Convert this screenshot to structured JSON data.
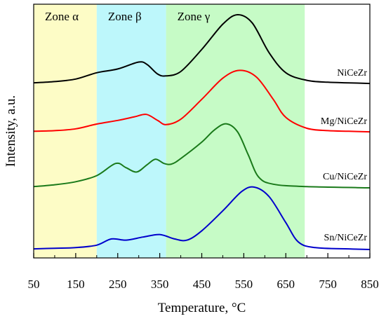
{
  "chart_data": {
    "type": "line",
    "xlabel": "Temperature, °C",
    "ylabel": "Intensity, a.u.",
    "xlim": [
      50,
      850
    ],
    "xticks": [
      50,
      150,
      250,
      350,
      450,
      550,
      650,
      750,
      850
    ],
    "grid": false,
    "y_ticks_labeled": false,
    "zones": [
      {
        "label": "Zone α",
        "from": 50,
        "to": 200,
        "color": "#fdfcc6"
      },
      {
        "label": "Zone β",
        "from": 200,
        "to": 365,
        "color": "#bdf7fb"
      },
      {
        "label": "Zone γ",
        "from": 365,
        "to": 695,
        "color": "#c6fbc6"
      }
    ],
    "series": [
      {
        "name": "NiCeZr",
        "color": "#000000",
        "points": [
          [
            50,
            0.02
          ],
          [
            100,
            0.04
          ],
          [
            150,
            0.08
          ],
          [
            200,
            0.18
          ],
          [
            250,
            0.24
          ],
          [
            300,
            0.35
          ],
          [
            320,
            0.31
          ],
          [
            345,
            0.16
          ],
          [
            365,
            0.13
          ],
          [
            400,
            0.2
          ],
          [
            450,
            0.55
          ],
          [
            500,
            0.95
          ],
          [
            535,
            1.1
          ],
          [
            570,
            0.97
          ],
          [
            610,
            0.5
          ],
          [
            650,
            0.18
          ],
          [
            700,
            0.06
          ],
          [
            750,
            0.03
          ],
          [
            800,
            0.02
          ],
          [
            850,
            0.01
          ]
        ]
      },
      {
        "name": "Mg/NiCeZr",
        "color": "#ff0000",
        "points": [
          [
            50,
            0.02
          ],
          [
            100,
            0.03
          ],
          [
            150,
            0.06
          ],
          [
            200,
            0.14
          ],
          [
            250,
            0.2
          ],
          [
            290,
            0.26
          ],
          [
            318,
            0.3
          ],
          [
            345,
            0.2
          ],
          [
            365,
            0.13
          ],
          [
            400,
            0.22
          ],
          [
            450,
            0.55
          ],
          [
            500,
            0.9
          ],
          [
            540,
            1.03
          ],
          [
            580,
            0.92
          ],
          [
            620,
            0.55
          ],
          [
            650,
            0.25
          ],
          [
            700,
            0.07
          ],
          [
            750,
            0.03
          ],
          [
            800,
            0.02
          ],
          [
            850,
            0.01
          ]
        ]
      },
      {
        "name": "Cu/NiCeZr",
        "color": "#1a7a1a",
        "points": [
          [
            50,
            0.02
          ],
          [
            100,
            0.05
          ],
          [
            150,
            0.1
          ],
          [
            200,
            0.2
          ],
          [
            245,
            0.4
          ],
          [
            270,
            0.33
          ],
          [
            295,
            0.26
          ],
          [
            320,
            0.38
          ],
          [
            340,
            0.47
          ],
          [
            360,
            0.4
          ],
          [
            378,
            0.39
          ],
          [
            400,
            0.48
          ],
          [
            450,
            0.75
          ],
          [
            480,
            0.95
          ],
          [
            508,
            1.05
          ],
          [
            535,
            0.92
          ],
          [
            560,
            0.55
          ],
          [
            585,
            0.18
          ],
          [
            620,
            0.06
          ],
          [
            700,
            0.02
          ],
          [
            850,
            0.0
          ]
        ]
      },
      {
        "name": "Sn/NiCeZr",
        "color": "#0000cc",
        "points": [
          [
            50,
            0.01
          ],
          [
            100,
            0.02
          ],
          [
            150,
            0.03
          ],
          [
            200,
            0.07
          ],
          [
            235,
            0.17
          ],
          [
            270,
            0.15
          ],
          [
            310,
            0.2
          ],
          [
            350,
            0.24
          ],
          [
            385,
            0.17
          ],
          [
            415,
            0.15
          ],
          [
            450,
            0.3
          ],
          [
            500,
            0.62
          ],
          [
            545,
            0.93
          ],
          [
            575,
            1.0
          ],
          [
            610,
            0.85
          ],
          [
            650,
            0.43
          ],
          [
            680,
            0.12
          ],
          [
            720,
            0.03
          ],
          [
            800,
            0.01
          ],
          [
            850,
            0.0
          ]
        ]
      }
    ]
  }
}
